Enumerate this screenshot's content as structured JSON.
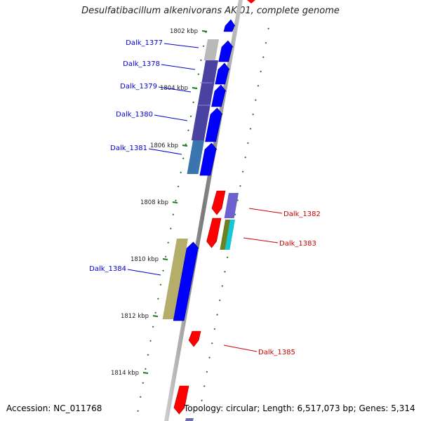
{
  "title": "Desulfatibacillum alkenivorans AK-01, complete genome",
  "accession": "Accession: NC_011768",
  "stats": "Topology: circular; Length: 6,517,073 bp; Genes: 5,314",
  "ticks": [
    {
      "label": "1802 kbp",
      "pos": 1802
    },
    {
      "label": "1804 kbp",
      "pos": 1804
    },
    {
      "label": "1806 kbp",
      "pos": 1806
    },
    {
      "label": "1808 kbp",
      "pos": 1808
    },
    {
      "label": "1810 kbp",
      "pos": 1810
    },
    {
      "label": "1812 kbp",
      "pos": 1812
    },
    {
      "label": "1814 kbp",
      "pos": 1814
    }
  ],
  "genes": [
    {
      "name": "Dalk_1377",
      "strand": "+",
      "color": "#0000ff"
    },
    {
      "name": "Dalk_1378",
      "strand": "+",
      "color": "#0000ff"
    },
    {
      "name": "Dalk_1379",
      "strand": "+",
      "color": "#0000ff"
    },
    {
      "name": "Dalk_1380",
      "strand": "+",
      "color": "#0000ff"
    },
    {
      "name": "Dalk_1381",
      "strand": "+",
      "color": "#0000ff"
    },
    {
      "name": "Dalk_1382",
      "strand": "-",
      "color": "#ff0000"
    },
    {
      "name": "Dalk_1383",
      "strand": "-",
      "color": "#ff0000"
    },
    {
      "name": "Dalk_1384",
      "strand": "+",
      "color": "#0000ff"
    },
    {
      "name": "Dalk_1385",
      "strand": "-",
      "color": "#ff0000"
    }
  ],
  "colors": {
    "plus_label": "#0000cc",
    "minus_label": "#cc0000",
    "tick": "#1a7a1a",
    "backbone": "#8a8a8a"
  }
}
